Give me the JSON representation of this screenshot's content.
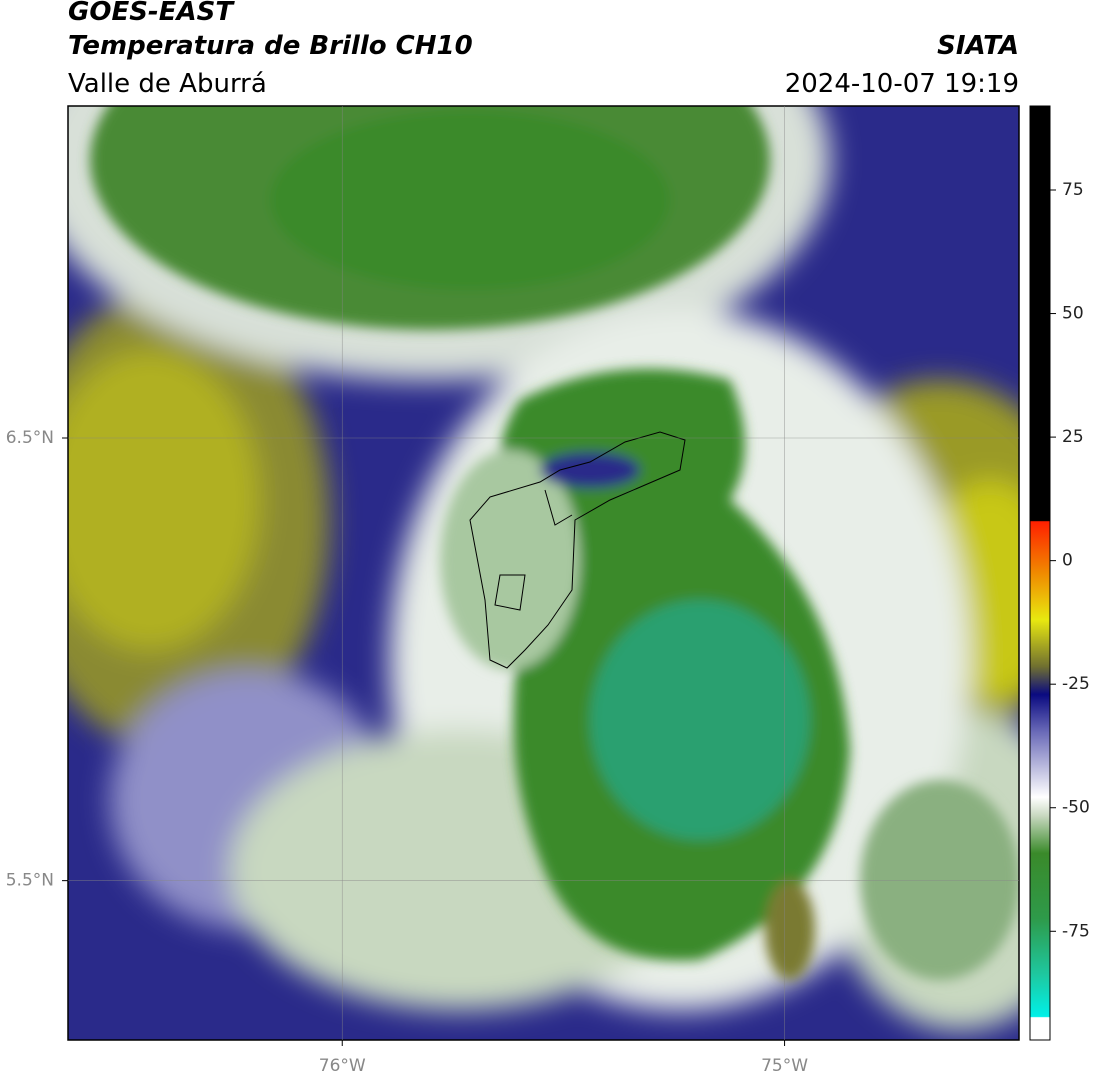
{
  "header": {
    "title": "GOES-EAST",
    "subtitle": "Temperatura de Brillo CH10",
    "region": "Valle de Aburrá",
    "source": "SIATA",
    "datetime": "2024-10-07 19:19"
  },
  "map": {
    "xlim": [
      -76.62,
      -74.47
    ],
    "ylim": [
      5.14,
      7.25
    ],
    "xticks": [
      {
        "value": -76,
        "label": "76°W"
      },
      {
        "value": -75,
        "label": "75°W"
      }
    ],
    "yticks": [
      {
        "value": 6.5,
        "label": "6.5°N"
      },
      {
        "value": 5.5,
        "label": "5.5°N"
      }
    ],
    "grid": true
  },
  "colorbar": {
    "lim": [
      -97,
      92
    ],
    "ticks": [
      75,
      50,
      25,
      0,
      -25,
      -50,
      -75
    ]
  }
}
